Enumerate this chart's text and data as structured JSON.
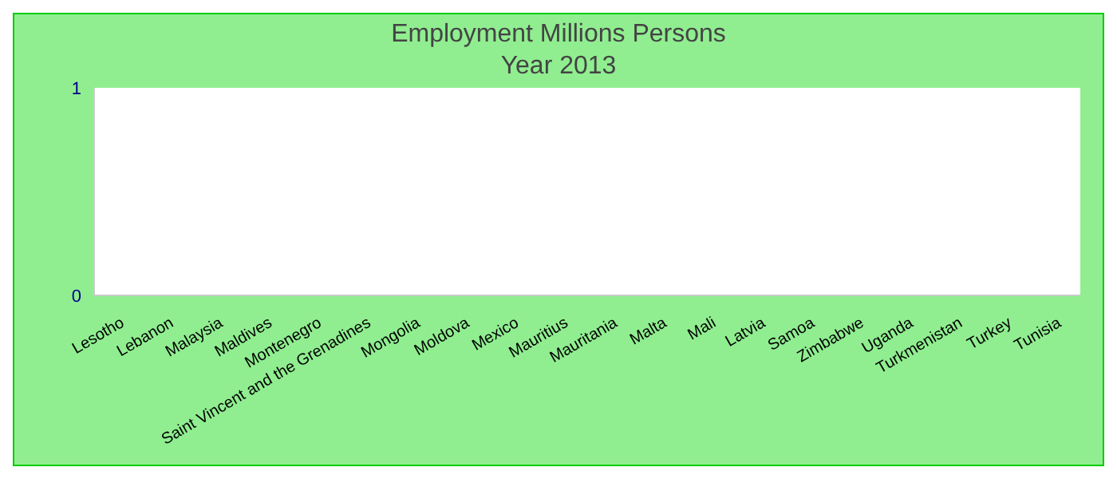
{
  "chart_data": {
    "type": "bar",
    "title": "Employment Millions Persons",
    "subtitle": "Year 2013",
    "categories": [
      "Lesotho",
      "Lebanon",
      "Malaysia",
      "Maldives",
      "Montenegro",
      "Saint Vincent and the Grenadines",
      "Mongolia",
      "Moldova",
      "Mexico",
      "Mauritius",
      "Mauritania",
      "Malta",
      "Mali",
      "Latvia",
      "Samoa",
      "Zimbabwe",
      "Uganda",
      "Turkmenistan",
      "Turkey",
      "Tunisia"
    ],
    "values": [
      0,
      0,
      0,
      0,
      0,
      0,
      0,
      0,
      0,
      0,
      0,
      0,
      0,
      0,
      0,
      0,
      0,
      0,
      0,
      0
    ],
    "ylim": [
      0,
      1
    ],
    "yticks": [
      0,
      1
    ],
    "grid": false,
    "legend": false
  }
}
